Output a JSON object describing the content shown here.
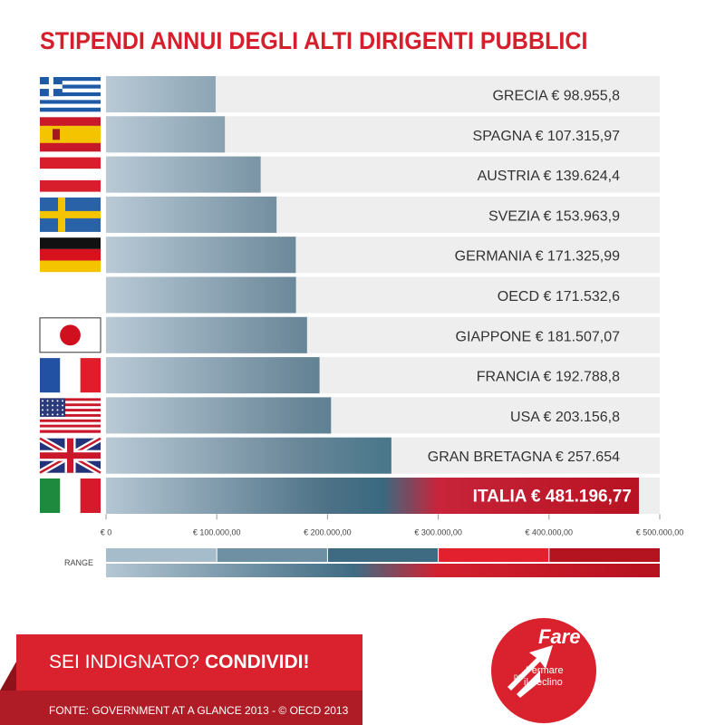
{
  "title": "STIPENDI ANNUI DEGLI ALTI DIRIGENTI PUBBLICI",
  "chart_data": {
    "type": "bar",
    "orientation": "horizontal",
    "title": "STIPENDI ANNUI DEGLI ALTI DIRIGENTI PUBBLICI",
    "categories": [
      "GRECIA",
      "SPAGNA",
      "AUSTRIA",
      "SVEZIA",
      "GERMANIA",
      "OECD",
      "GIAPPONE",
      "FRANCIA",
      "USA",
      "GRAN BRETAGNA",
      "ITALIA"
    ],
    "values": [
      98955.8,
      107315.97,
      139624.4,
      153963.9,
      171325.99,
      171532.6,
      181507.07,
      192788.8,
      203156.8,
      257654,
      481196.77
    ],
    "bar_labels": [
      "GRECIA € 98.955,8",
      "SPAGNA € 107.315,97",
      "AUSTRIA € 139.624,4",
      "SVEZIA € 153.963,9",
      "GERMANIA € 171.325,99",
      "OECD € 171.532,6",
      "GIAPPONE € 181.507,07",
      "FRANCIA € 192.788,8",
      "USA € 203.156,8",
      "GRAN BRETAGNA € 257.654",
      "ITALIA € 481.196,77"
    ],
    "flags": [
      "greece-flag",
      "spain-flag",
      "austria-flag",
      "sweden-flag",
      "germany-flag",
      "",
      "japan-flag",
      "france-flag",
      "usa-flag",
      "uk-flag",
      "italy-flag"
    ],
    "xlim": [
      0,
      500000
    ],
    "x_ticks": [
      0,
      100000,
      200000,
      300000,
      400000,
      500000
    ],
    "x_tick_labels": [
      "€ 0",
      "€ 100.000,00",
      "€ 200.000,00",
      "€ 300.000,00",
      "€ 400.000,00",
      "€ 500.000,00"
    ],
    "highlight": "ITALIA",
    "range_label": "RANGE",
    "range_colors": [
      "#a7bccb",
      "#6f8fa3",
      "#3f6b82",
      "#e3202e",
      "#b3141f"
    ],
    "grid": false
  },
  "banner": {
    "text_normal": "SEI INDIGNATO? ",
    "text_bold": "CONDIVIDI!",
    "source": "FONTE: GOVERNMENT AT A GLANCE 2013 - © OECD 2013"
  },
  "logo": {
    "word": "Fare",
    "per": "per",
    "line1": "Fermare",
    "line2": "il declino",
    "color": "#d9222d"
  }
}
